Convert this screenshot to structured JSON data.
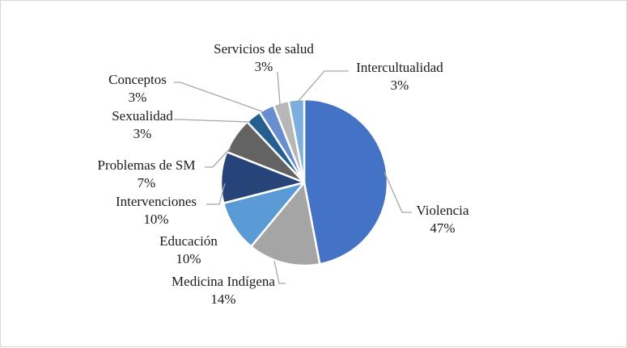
{
  "chart_data": {
    "type": "pie",
    "title": "",
    "legend": "none",
    "slices": [
      {
        "name": "Violencia",
        "pct_label": "47%",
        "value": 47,
        "color": "#4472C4"
      },
      {
        "name": "Medicina  Indígena",
        "pct_label": "14%",
        "value": 14,
        "color": "#A5A5A5"
      },
      {
        "name": "Educación",
        "pct_label": "10%",
        "value": 10,
        "color": "#5B9BD5"
      },
      {
        "name": "Intervenciones",
        "pct_label": "10%",
        "value": 10,
        "color": "#264478"
      },
      {
        "name": "Problemas de SM",
        "pct_label": "7%",
        "value": 7,
        "color": "#636363"
      },
      {
        "name": "Sexualidad",
        "pct_label": "3%",
        "value": 3,
        "color": "#255E91"
      },
      {
        "name": "Conceptos",
        "pct_label": "3%",
        "value": 3,
        "color": "#698ED0"
      },
      {
        "name": "Servicios de salud",
        "pct_label": "3%",
        "value": 3,
        "color": "#B7B7B7"
      },
      {
        "name": "Intercultualidad",
        "pct_label": "3%",
        "value": 3,
        "color": "#7CAFDD"
      }
    ]
  }
}
